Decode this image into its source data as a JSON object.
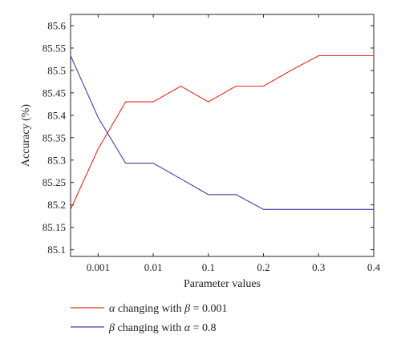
{
  "chart_data": {
    "type": "line",
    "xlabel": "Parameter values",
    "ylabel": "Accuracy (%)",
    "x_ticks": [
      "0.001",
      "0.01",
      "0.1",
      "0.2",
      "0.3",
      "0.4"
    ],
    "y_ticks": [
      85.1,
      85.15,
      85.2,
      85.25,
      85.3,
      85.35,
      85.4,
      85.45,
      85.5,
      85.55,
      85.6
    ],
    "y_tick_labels": [
      "85.1",
      "85.15",
      "85.2",
      "85.25",
      "85.3",
      "85.35",
      "85.4",
      "85.45",
      "85.5",
      "85.55",
      "85.6"
    ],
    "ylim": [
      85.085,
      85.625
    ],
    "grid": false,
    "legend_position": "bottom",
    "series": [
      {
        "name": "α changing with β = 0.001",
        "legend_parts": [
          "α",
          " changing with ",
          "β",
          " = 0.001"
        ],
        "color": "#e8291c",
        "x_pos": [
          0,
          1,
          2,
          3,
          4,
          5,
          6,
          7,
          8,
          9,
          10,
          11
        ],
        "values": [
          85.19,
          85.325,
          85.43,
          85.43,
          85.465,
          85.43,
          85.465,
          85.465,
          85.5,
          85.533,
          85.533,
          85.533
        ]
      },
      {
        "name": "β changing with α = 0.8",
        "legend_parts": [
          "β",
          " changing with ",
          "α",
          " = 0.8"
        ],
        "color": "#3f3f9f",
        "x_pos": [
          0,
          1,
          2,
          3,
          4,
          5,
          6,
          7,
          8,
          9,
          10,
          11
        ],
        "values": [
          85.533,
          85.395,
          85.293,
          85.293,
          85.258,
          85.223,
          85.223,
          85.19,
          85.19,
          85.19,
          85.19,
          85.19
        ]
      }
    ],
    "x_tick_positions": [
      1,
      3,
      5,
      7,
      9,
      11
    ],
    "x_range": [
      0,
      11
    ]
  }
}
